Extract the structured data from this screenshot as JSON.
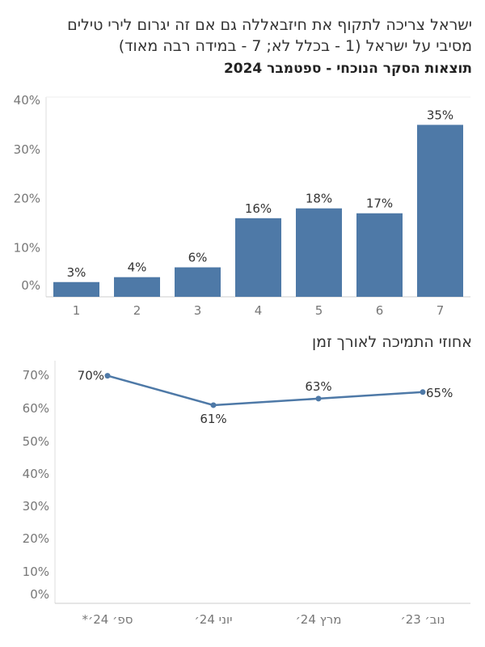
{
  "header": {
    "title_line1": "ישראל צריכה לתקוף את חיזבאללה גם אם זה יגרום לירי טילים",
    "title_line2": "מסיבי על ישראל (1 - בכלל לא; 7 - במידה רבה מאוד)",
    "subtitle": "תוצאות הסקר הנוכחי - ספטמבר 2024"
  },
  "line_section_title": "אחוזי התמיכה לאורך זמן",
  "chart_data": [
    {
      "type": "bar",
      "categories": [
        "1",
        "2",
        "3",
        "4",
        "5",
        "6",
        "7"
      ],
      "values": [
        3,
        4,
        6,
        16,
        18,
        17,
        35
      ],
      "value_labels": [
        "3%",
        "4%",
        "6%",
        "16%",
        "18%",
        "17%",
        "35%"
      ],
      "yticks": [
        "0%",
        "10%",
        "20%",
        "30%",
        "40%"
      ],
      "ytick_values": [
        0,
        10,
        20,
        30,
        40
      ],
      "ylim": [
        0,
        40
      ],
      "color": "#4e79a7",
      "grid": false
    },
    {
      "type": "line",
      "categories": [
        "ספ׳ 24׳*",
        "יוני 24׳",
        "מרץ 24׳",
        "נוב׳ 23׳"
      ],
      "values": [
        70,
        61,
        63,
        65
      ],
      "value_labels": [
        "70%",
        "61%",
        "63%",
        "65%"
      ],
      "yticks": [
        "0%",
        "10%",
        "20%",
        "30%",
        "40%",
        "50%",
        "60%",
        "70%"
      ],
      "ytick_values": [
        0,
        10,
        20,
        30,
        40,
        50,
        60,
        70
      ],
      "ylim": [
        0,
        72
      ],
      "color": "#4e79a7",
      "grid": false
    }
  ]
}
